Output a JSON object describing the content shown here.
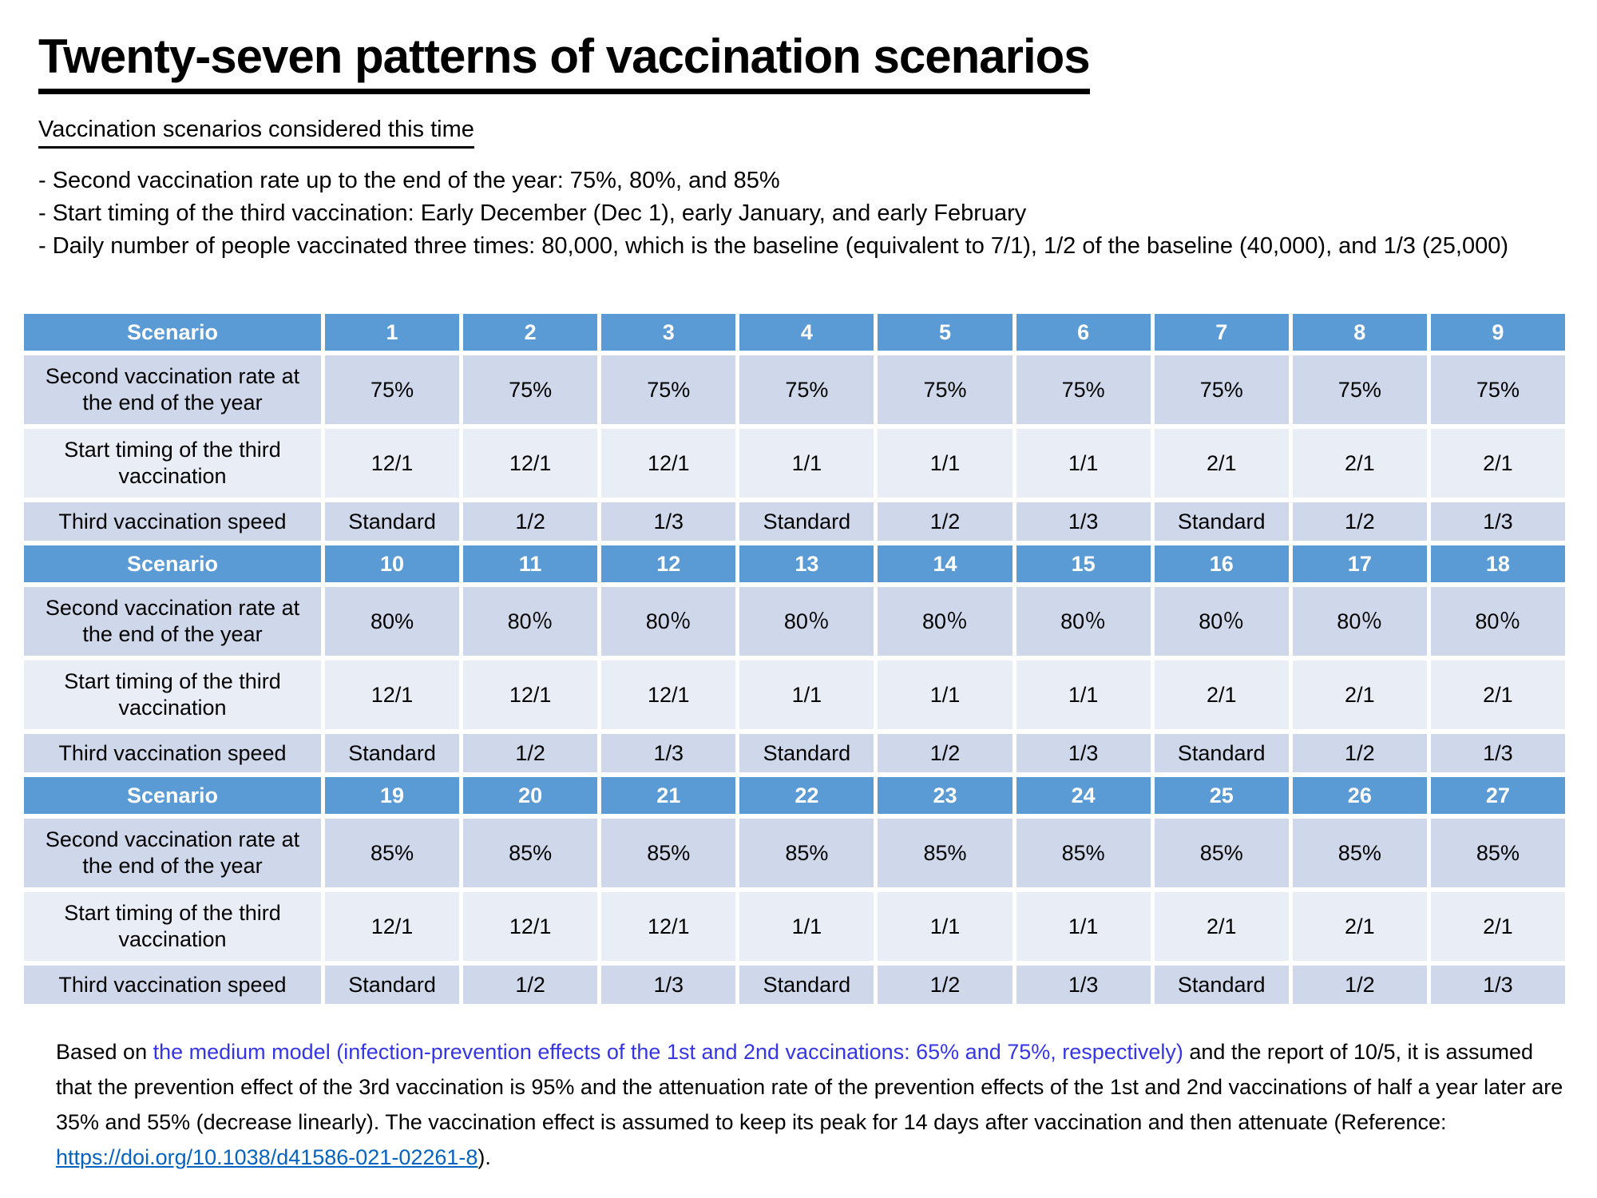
{
  "title": "Twenty-seven patterns of vaccination scenarios",
  "subtitle": "Vaccination scenarios considered this time",
  "bullets": [
    "- Second vaccination rate up to the end of the year: 75%, 80%, and 85%",
    "- Start timing of the third vaccination: Early December (Dec 1), early January, and early February",
    "- Daily number of people vaccinated three times: 80,000, which is the baseline (equivalent to 7/1), 1/2 of the baseline (40,000), and 1/3 (25,000)"
  ],
  "table": {
    "row_labels": {
      "scenario": "Scenario",
      "rate": "Second vaccination rate at the end of the year",
      "timing": "Start timing of the third vaccination",
      "speed": "Third vaccination speed"
    },
    "blocks": [
      {
        "scenarios": [
          "1",
          "2",
          "3",
          "4",
          "5",
          "6",
          "7",
          "8",
          "9"
        ],
        "rates": [
          "75%",
          "75%",
          "75%",
          "75%",
          "75%",
          "75%",
          "75%",
          "75%",
          "75%"
        ],
        "timings": [
          "12/1",
          "12/1",
          "12/1",
          "1/1",
          "1/1",
          "1/1",
          "2/1",
          "2/1",
          "2/1"
        ],
        "speeds": [
          "Standard",
          "1/2",
          "1/3",
          "Standard",
          "1/2",
          "1/3",
          "Standard",
          "1/2",
          "1/3"
        ]
      },
      {
        "scenarios": [
          "10",
          "11",
          "12",
          "13",
          "14",
          "15",
          "16",
          "17",
          "18"
        ],
        "rates": [
          "80%",
          "80％",
          "80％",
          "80％",
          "80％",
          "80％",
          "80％",
          "80％",
          "80％"
        ],
        "timings": [
          "12/1",
          "12/1",
          "12/1",
          "1/1",
          "1/1",
          "1/1",
          "2/1",
          "2/1",
          "2/1"
        ],
        "speeds": [
          "Standard",
          "1/2",
          "1/3",
          "Standard",
          "1/2",
          "1/3",
          "Standard",
          "1/2",
          "1/3"
        ]
      },
      {
        "scenarios": [
          "19",
          "20",
          "21",
          "22",
          "23",
          "24",
          "25",
          "26",
          "27"
        ],
        "rates": [
          "85%",
          "85%",
          "85%",
          "85%",
          "85%",
          "85%",
          "85%",
          "85%",
          "85%"
        ],
        "timings": [
          "12/1",
          "12/1",
          "12/1",
          "1/1",
          "1/1",
          "1/1",
          "2/1",
          "2/1",
          "2/1"
        ],
        "speeds": [
          "Standard",
          "1/2",
          "1/3",
          "Standard",
          "1/2",
          "1/3",
          "Standard",
          "1/2",
          "1/3"
        ]
      }
    ]
  },
  "footer": {
    "before_accent": "Based on ",
    "accent": "the medium model (infection-prevention effects of the 1st and 2nd vaccinations: 65% and 75%, respectively)",
    "middle": " and the report of 10/5, it is assumed that the prevention effect of the 3rd vaccination is 95% and the attenuation rate of the prevention effects of the 1st and 2nd vaccinations of half a year later are 35% and 55% (decrease linearly). The vaccination effect is assumed to keep its peak for 14 days after vaccination and then attenuate (Reference: ",
    "link_text": "https://doi.org/10.1038/d41586-021-02261-8",
    "after_link": ")."
  },
  "colors": {
    "header_blue": "#5B9BD5",
    "band_dark": "#CED8EA",
    "band_light": "#E9EDF6",
    "accent_text": "#3535E6",
    "link_blue": "#0563C1",
    "text": "#000000"
  }
}
